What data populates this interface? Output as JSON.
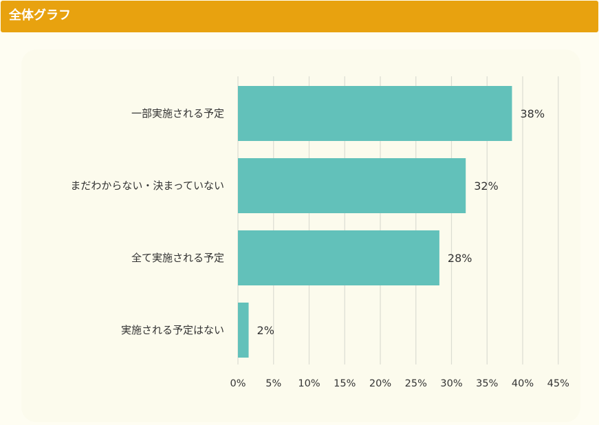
{
  "header": {
    "title": "全体グラフ"
  },
  "colors": {
    "header_bg": "#e8a20f",
    "bar": "#62c1ba",
    "grid": "#dcdcd2",
    "card_bg": "#fcfbed"
  },
  "chart_data": {
    "type": "bar",
    "orientation": "horizontal",
    "categories": [
      "一部実施される予定",
      "まだわからない・決まっていない",
      "全て実施される予定",
      "実施される予定はない"
    ],
    "values": [
      38.5,
      32,
      28.3,
      1.5
    ],
    "value_labels": [
      "38%",
      "32%",
      "28%",
      "2%"
    ],
    "x_ticks": [
      "0%",
      "5%",
      "10%",
      "15%",
      "20%",
      "25%",
      "30%",
      "35%",
      "40%",
      "45%"
    ],
    "xlim": [
      0,
      45
    ],
    "grid": true
  }
}
